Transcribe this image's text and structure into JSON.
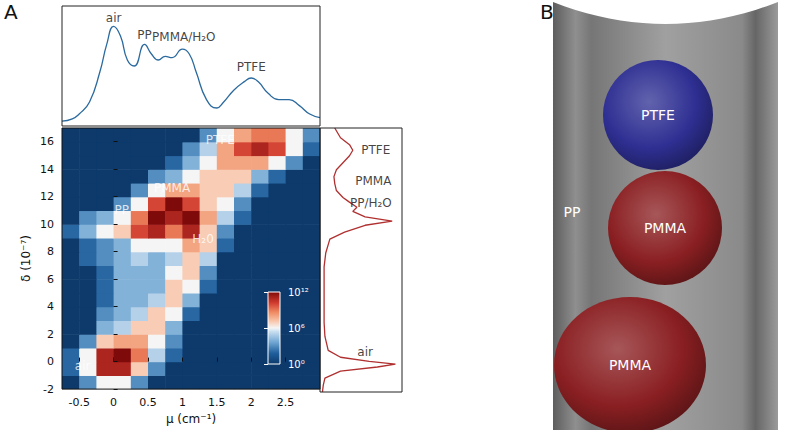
{
  "panel_labels": [
    "A",
    "B"
  ],
  "chart_data": [
    {
      "type": "line",
      "color": "#2b6a9e",
      "xlim": [
        -0.75,
        3
      ],
      "ylim": [
        0,
        1
      ],
      "tick_labels": false,
      "x": [
        -0.75,
        -0.6,
        -0.5,
        -0.35,
        -0.2,
        -0.1,
        0,
        0.1,
        0.2,
        0.3,
        0.45,
        0.55,
        0.65,
        0.75,
        0.85,
        1,
        1.1,
        1.2,
        1.35,
        1.5,
        1.6,
        1.75,
        1.9,
        2,
        2.1,
        2.25,
        2.4,
        2.55,
        2.7,
        2.85,
        3
      ],
      "values": [
        0.04,
        0.06,
        0.1,
        0.2,
        0.45,
        0.68,
        0.83,
        0.75,
        0.55,
        0.5,
        0.68,
        0.6,
        0.55,
        0.58,
        0.57,
        0.64,
        0.6,
        0.45,
        0.22,
        0.15,
        0.2,
        0.3,
        0.37,
        0.4,
        0.37,
        0.27,
        0.22,
        0.22,
        0.17,
        0.1,
        0.07
      ],
      "annotations": [
        {
          "text": "air",
          "x": 0,
          "y": 0.9
        },
        {
          "text": "PP",
          "x": 0.45,
          "y": 0.76
        },
        {
          "text": "PMMA/H₂O",
          "x": 1.02,
          "y": 0.74
        },
        {
          "text": "PTFE",
          "x": 2,
          "y": 0.49
        }
      ]
    },
    {
      "type": "heatmap",
      "x_label": "μ (cm⁻¹)",
      "y_label": "δ (10⁻⁷)",
      "xlim": [
        -0.75,
        3
      ],
      "xticks": [
        -0.5,
        0,
        0.5,
        1,
        1.5,
        2,
        2.5
      ],
      "ylim": [
        -2,
        17
      ],
      "yticks": [
        -2,
        0,
        2,
        4,
        6,
        8,
        10,
        12,
        14,
        16
      ],
      "x_edges": [
        -0.75,
        -0.5,
        -0.25,
        0,
        0.25,
        0.5,
        0.75,
        1,
        1.25,
        1.5,
        1.75,
        2,
        2.25,
        2.5,
        2.75,
        3
      ],
      "y_edges": [
        -2,
        -1,
        0,
        1,
        2,
        3,
        4,
        5,
        6,
        7,
        8,
        9,
        10,
        11,
        12,
        13,
        14,
        15,
        16,
        17
      ],
      "counts": [
        [
          1,
          1000.0,
          1000000.0,
          1000000.0,
          1000.0,
          1,
          1,
          1,
          1,
          1,
          1,
          1,
          1,
          1,
          1
        ],
        [
          100.0,
          1000000.0,
          100000000000.0,
          100000000000.0,
          10000000.0,
          1000.0,
          1,
          1,
          1,
          1,
          1,
          1,
          1,
          1,
          1
        ],
        [
          100.0,
          1000000.0,
          100000000000.0,
          1000000000000.0,
          1000000000.0,
          100000.0,
          100.0,
          1,
          1,
          1,
          1,
          1,
          1,
          1,
          1
        ],
        [
          1,
          1000.0,
          10000000.0,
          100000000.0,
          100000000.0,
          1000000.0,
          1000.0,
          1,
          1,
          1,
          1,
          1,
          1,
          1,
          1
        ],
        [
          1,
          1,
          10000.0,
          100000.0,
          10000000.0,
          10000000.0,
          10000.0,
          1,
          1,
          1,
          1,
          1,
          1,
          1,
          1
        ],
        [
          1,
          1,
          1000.0,
          10000.0,
          100000.0,
          10000000.0,
          1000000.0,
          100.0,
          1,
          1,
          1,
          1,
          1,
          1,
          1
        ],
        [
          1,
          1,
          100.0,
          10000.0,
          10000.0,
          100000.0,
          10000000.0,
          10000.0,
          1,
          1,
          1,
          1,
          1,
          1,
          1
        ],
        [
          1,
          1,
          100.0,
          10000.0,
          10000.0,
          10000.0,
          10000000.0,
          1000000.0,
          100.0,
          1,
          1,
          1,
          1,
          1,
          1
        ],
        [
          1,
          1,
          100.0,
          10000.0,
          10000.0,
          10000.0,
          1000000.0,
          10000000.0,
          1000.0,
          1,
          1,
          1,
          1,
          1,
          1
        ],
        [
          1,
          100.0,
          1000.0,
          10000.0,
          100000.0,
          10000.0,
          100000.0,
          10000000.0,
          100000.0,
          1,
          1,
          1,
          1,
          1,
          1
        ],
        [
          1,
          100.0,
          1000.0,
          10000.0,
          1000000.0,
          1000000.0,
          1000000.0,
          100000000.0,
          10000000.0,
          100.0,
          1,
          1,
          1,
          1,
          1
        ],
        [
          100.0,
          10000.0,
          1000000.0,
          10000000.0,
          10000000000.0,
          100000000000.0,
          1000000000.0,
          100000000000.0,
          10000000.0,
          1000.0,
          1,
          1,
          1,
          1,
          1
        ],
        [
          1,
          1000.0,
          10000.0,
          1000000.0,
          1000000000.0,
          1000000000000.0,
          100000000000.0,
          1000000000000.0,
          100000000.0,
          100000.0,
          100.0,
          1,
          1,
          1,
          1
        ],
        [
          1,
          1,
          1,
          1000.0,
          1000000.0,
          10000000000.0,
          1000000000000.0,
          10000000000.0,
          10000000.0,
          1000000.0,
          1000.0,
          1,
          1,
          1,
          1
        ],
        [
          1,
          1,
          1,
          1,
          1000.0,
          1000000.0,
          100000000.0,
          100000000.0,
          10000000.0,
          10000000.0,
          100000.0,
          100.0,
          1,
          1,
          1
        ],
        [
          1,
          1,
          1,
          1,
          1,
          1000.0,
          10000.0,
          1000000.0,
          10000000.0,
          10000000.0,
          10000000.0,
          10000.0,
          100.0,
          1,
          1
        ],
        [
          1,
          1,
          1,
          1,
          1,
          1,
          100.0,
          10000.0,
          1000000.0,
          100000000.0,
          100000000.0,
          100000000.0,
          1000000.0,
          1000.0,
          1
        ],
        [
          1,
          1,
          1,
          1,
          1,
          1,
          1,
          1000.0,
          100000.0,
          100000000.0,
          10000000000.0,
          100000000000.0,
          10000000000.0,
          1000000.0,
          100.0
        ],
        [
          1,
          1,
          1,
          1,
          1,
          1,
          1,
          1,
          1000.0,
          1000000.0,
          100000000.0,
          1000000000.0,
          1000000000.0,
          1000000.0,
          1000.0
        ]
      ],
      "colorbar": {
        "lim": [
          1,
          1000000000000.0
        ],
        "log": true,
        "ticks": [
          {
            "value": 1,
            "label": "10⁰"
          },
          {
            "value": 1000000.0,
            "label": "10⁶"
          },
          {
            "value": 1000000000000.0,
            "label": "10¹²"
          }
        ]
      },
      "annotations": [
        {
          "text": "PTFE",
          "x": 1.55,
          "y": 16.1
        },
        {
          "text": "PMMA",
          "x": 0.85,
          "y": 12.6
        },
        {
          "text": "PP",
          "x": 0.12,
          "y": 11
        },
        {
          "text": "H₂0",
          "x": 1.3,
          "y": 8.9
        },
        {
          "text": "air",
          "x": -0.45,
          "y": -0.3
        }
      ]
    },
    {
      "type": "line",
      "color": "#b03030",
      "xlim": [
        0,
        1
      ],
      "ylim": [
        -2,
        17
      ],
      "tick_labels": false,
      "y": [
        -2,
        -1.5,
        -1,
        -0.5,
        -0.2,
        0,
        0.2,
        0.5,
        1,
        2,
        3,
        4,
        5,
        6,
        7,
        8,
        9,
        9.5,
        10,
        10.3,
        10.6,
        11,
        11.3,
        11.7,
        12,
        12.5,
        13,
        13.5,
        14,
        14.5,
        15,
        15.4,
        15.8,
        16.3,
        17
      ],
      "x": [
        0.03,
        0.04,
        0.06,
        0.25,
        0.7,
        0.92,
        0.6,
        0.25,
        0.1,
        0.06,
        0.05,
        0.05,
        0.05,
        0.05,
        0.05,
        0.07,
        0.12,
        0.3,
        0.55,
        0.88,
        0.55,
        0.4,
        0.45,
        0.35,
        0.28,
        0.2,
        0.18,
        0.17,
        0.2,
        0.28,
        0.36,
        0.4,
        0.36,
        0.25,
        0.18
      ],
      "annotations": [
        {
          "text": "PTFE",
          "x": 0.68,
          "y": 15.4
        },
        {
          "text": "PMMA",
          "x": 0.65,
          "y": 13.2
        },
        {
          "text": "PP/H₂O",
          "x": 0.62,
          "y": 11.6
        },
        {
          "text": "air",
          "x": 0.55,
          "y": 0.9
        }
      ]
    }
  ],
  "rendering": {
    "tube_label": "PP",
    "objects": [
      {
        "label": "PMMA",
        "color": "#8a1f22"
      },
      {
        "label": "PMMA",
        "color": "#8a1f22"
      },
      {
        "label": "PTFE",
        "color": "#2e2f92"
      }
    ]
  }
}
